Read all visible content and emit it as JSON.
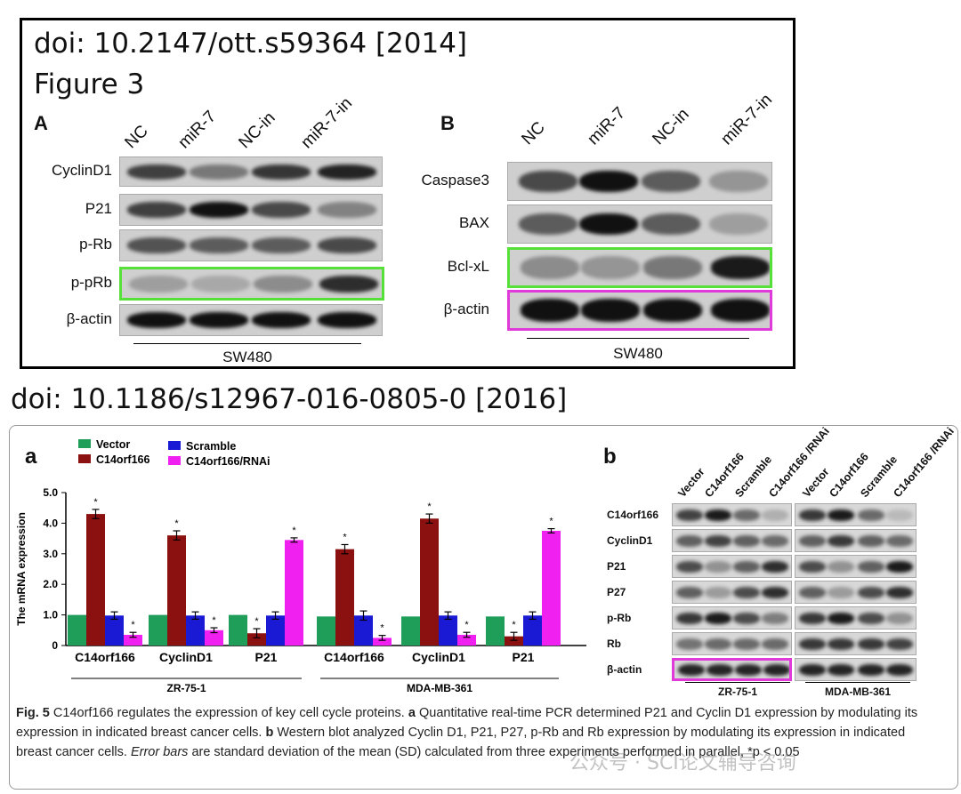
{
  "figure1": {
    "doi_line": "doi: 10.2147/ott.s59364 [2014]",
    "figure_line": "Figure 3",
    "panel_a": {
      "letter": "A",
      "lanes": [
        "NC",
        "miR-7",
        "NC-in",
        "miR-7-in"
      ],
      "rows": [
        "CyclinD1",
        "P21",
        "p-Rb",
        "p-pRb",
        "β-actin"
      ],
      "condition": "SW480"
    },
    "panel_b": {
      "letter": "B",
      "lanes": [
        "NC",
        "miR-7",
        "NC-in",
        "miR-7-in"
      ],
      "rows": [
        "Caspase3",
        "BAX",
        "Bcl-xL",
        "β-actin"
      ],
      "condition": "SW480"
    },
    "highlight_green": "#58e03a",
    "highlight_pink": "#e03adb"
  },
  "figure2": {
    "doi_line": "doi: 10.1186/s12967-016-0805-0 [2016]",
    "panel_a_letter": "a",
    "panel_b_letter": "b",
    "panel_b": {
      "lanes": [
        "Vector",
        "C14orf166",
        "Scramble",
        "C14orf166 /RNAi",
        "Vector",
        "C14orf166",
        "Scramble",
        "C14orf166 /RNAi"
      ],
      "rows": [
        "C14orf166",
        "CyclinD1",
        "P21",
        "P27",
        "p-Rb",
        "Rb",
        "β-actin"
      ],
      "groups": [
        "ZR-75-1",
        "MDA-MB-361"
      ]
    },
    "caption": {
      "fig_label": "Fig. 5",
      "text1": " C14orf166 regulates the expression of key cell cycle proteins. ",
      "a": "a",
      "text2": " Quantitative real-time PCR determined P21 and Cyclin D1 expression by modulating its expression in indicated breast cancer cells. ",
      "b": "b",
      "text3": " Western blot analyzed Cyclin D1, P21, P27, p-Rb and Rb expression by modulating its expression in indicated breast cancer cells. ",
      "error_bars": "Error bars",
      "text4": " are standard deviation of the mean (SD) calculated from three experiments performed in parallel, *p < 0.05"
    },
    "watermark": "公众号 · SCI论文辅导咨询"
  },
  "chart_data": {
    "type": "bar",
    "ylabel": "The mRNA expression",
    "ylim": [
      0,
      5.0
    ],
    "yticks": [
      "0",
      "1.0",
      "2.0",
      "3.0",
      "4.0",
      "5.0"
    ],
    "legend": [
      "Vector",
      "C14orf166",
      "Scramble",
      "C14orf166/RNAi"
    ],
    "legend_placement": "top-left",
    "colors": {
      "Vector": "#1f9e5a",
      "C14orf166": "#8b1010",
      "Scramble": "#1a1ad4",
      "C14orf166/RNAi": "#f020f0"
    },
    "categories": [
      "C14orf166",
      "CyclinD1",
      "P21",
      "C14orf166",
      "CyclinD1",
      "P21"
    ],
    "groups": [
      {
        "name": "ZR-75-1",
        "span": [
          0,
          2
        ]
      },
      {
        "name": "MDA-MB-361",
        "span": [
          3,
          5
        ]
      }
    ],
    "series": [
      {
        "name": "Vector",
        "values": [
          1.0,
          1.0,
          1.0,
          0.95,
          0.95,
          0.95
        ],
        "err": [
          0,
          0,
          0,
          0,
          0,
          0
        ],
        "star": [
          false,
          false,
          false,
          false,
          false,
          false
        ]
      },
      {
        "name": "C14orf166",
        "values": [
          4.3,
          3.6,
          0.4,
          3.15,
          4.15,
          0.3
        ],
        "err": [
          0.15,
          0.15,
          0.15,
          0.15,
          0.15,
          0.13
        ],
        "star": [
          true,
          true,
          true,
          true,
          true,
          true
        ]
      },
      {
        "name": "Scramble",
        "values": [
          0.98,
          0.98,
          0.98,
          0.98,
          0.98,
          0.98
        ],
        "err": [
          0.12,
          0.12,
          0.12,
          0.15,
          0.12,
          0.12
        ],
        "star": [
          false,
          false,
          false,
          false,
          false,
          false
        ]
      },
      {
        "name": "C14orf166/RNAi",
        "values": [
          0.35,
          0.5,
          3.45,
          0.25,
          0.35,
          3.75
        ],
        "err": [
          0.08,
          0.08,
          0.07,
          0.08,
          0.08,
          0.07
        ],
        "star": [
          true,
          true,
          true,
          true,
          true,
          true
        ]
      }
    ]
  }
}
